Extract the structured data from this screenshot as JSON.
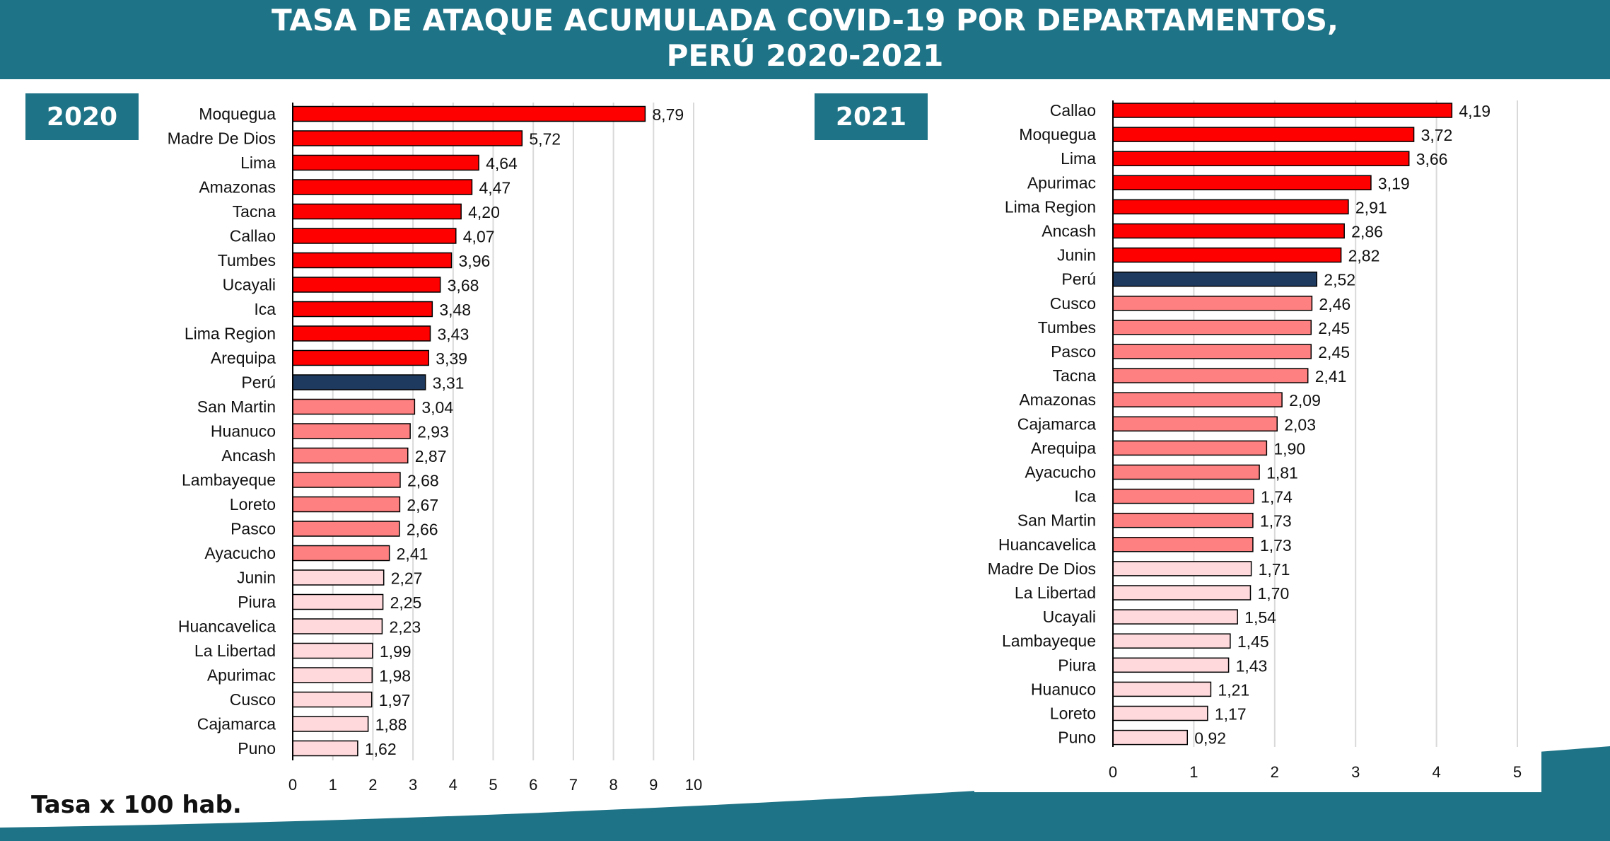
{
  "title_line1": "TASA DE ATAQUE ACUMULADA COVID-19 POR DEPARTAMENTOS,",
  "title_line2": "PERÚ 2020-2021",
  "footnote": "Tasa x 100 hab.",
  "colors": {
    "header": "#1f7386",
    "high": "#ff0000",
    "mid": "#ff8080",
    "low": "#ffd9dc",
    "national": "#1f3a5f",
    "grid": "#d9d9d9"
  },
  "chart_data": [
    {
      "type": "bar",
      "title": "2020",
      "orientation": "horizontal",
      "xlim": [
        0,
        10
      ],
      "ticks": [
        0,
        1,
        2,
        3,
        4,
        5,
        6,
        7,
        8,
        9,
        10
      ],
      "grid": true,
      "categories": [
        "Moquegua",
        "Madre De Dios",
        "Lima",
        "Amazonas",
        "Tacna",
        "Callao",
        "Tumbes",
        "Ucayali",
        "Ica",
        "Lima Region",
        "Arequipa",
        "Perú",
        "San Martin",
        "Huanuco",
        "Ancash",
        "Lambayeque",
        "Loreto",
        "Pasco",
        "Ayacucho",
        "Junin",
        "Piura",
        "Huancavelica",
        "La Libertad",
        "Apurimac",
        "Cusco",
        "Cajamarca",
        "Puno"
      ],
      "values": [
        8.79,
        5.72,
        4.64,
        4.47,
        4.2,
        4.07,
        3.96,
        3.68,
        3.48,
        3.43,
        3.39,
        3.31,
        3.04,
        2.93,
        2.87,
        2.68,
        2.67,
        2.66,
        2.41,
        2.27,
        2.25,
        2.23,
        1.99,
        1.98,
        1.97,
        1.88,
        1.62
      ],
      "labels": [
        "8,79",
        "5,72",
        "4,64",
        "4,47",
        "4,20",
        "4,07",
        "3,96",
        "3,68",
        "3,48",
        "3,43",
        "3,39",
        "3,31",
        "3,04",
        "2,93",
        "2,87",
        "2,68",
        "2,67",
        "2,66",
        "2,41",
        "2,27",
        "2,25",
        "2,23",
        "1,99",
        "1,98",
        "1,97",
        "1,88",
        "1,62"
      ],
      "tiers": [
        "high",
        "high",
        "high",
        "high",
        "high",
        "high",
        "high",
        "high",
        "high",
        "high",
        "high",
        "national",
        "mid",
        "mid",
        "mid",
        "mid",
        "mid",
        "mid",
        "mid",
        "low",
        "low",
        "low",
        "low",
        "low",
        "low",
        "low",
        "low"
      ]
    },
    {
      "type": "bar",
      "title": "2021",
      "orientation": "horizontal",
      "xlim": [
        0,
        5
      ],
      "ticks": [
        0,
        1,
        2,
        3,
        4,
        5
      ],
      "grid": true,
      "categories": [
        "Callao",
        "Moquegua",
        "Lima",
        "Apurimac",
        "Lima Region",
        "Ancash",
        "Junin",
        "Perú",
        "Cusco",
        "Tumbes",
        "Pasco",
        "Tacna",
        "Amazonas",
        "Cajamarca",
        "Arequipa",
        "Ayacucho",
        "Ica",
        "San Martin",
        "Huancavelica",
        "Madre De Dios",
        "La Libertad",
        "Ucayali",
        "Lambayeque",
        "Piura",
        "Huanuco",
        "Loreto",
        "Puno"
      ],
      "values": [
        4.19,
        3.72,
        3.66,
        3.19,
        2.91,
        2.86,
        2.82,
        2.52,
        2.46,
        2.45,
        2.45,
        2.41,
        2.09,
        2.03,
        1.9,
        1.81,
        1.74,
        1.73,
        1.73,
        1.71,
        1.7,
        1.54,
        1.45,
        1.43,
        1.21,
        1.17,
        0.92
      ],
      "labels": [
        "4,19",
        "3,72",
        "3,66",
        "3,19",
        "2,91",
        "2,86",
        "2,82",
        "2,52",
        "2,46",
        "2,45",
        "2,45",
        "2,41",
        "2,09",
        "2,03",
        "1,90",
        "1,81",
        "1,74",
        "1,73",
        "1,73",
        "1,71",
        "1,70",
        "1,54",
        "1,45",
        "1,43",
        "1,21",
        "1,17",
        "0,92"
      ],
      "tiers": [
        "high",
        "high",
        "high",
        "high",
        "high",
        "high",
        "high",
        "national",
        "mid",
        "mid",
        "mid",
        "mid",
        "mid",
        "mid",
        "mid",
        "mid",
        "mid",
        "mid",
        "mid",
        "low",
        "low",
        "low",
        "low",
        "low",
        "low",
        "low",
        "low"
      ]
    }
  ]
}
